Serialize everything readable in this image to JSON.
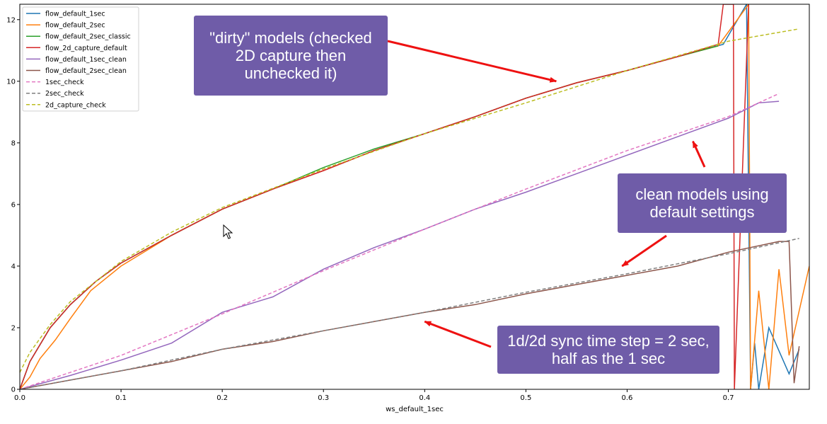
{
  "chart_data": {
    "type": "line",
    "xlabel": "ws_default_1sec",
    "ylabel": "",
    "xlim": [
      0.0,
      0.78
    ],
    "ylim": [
      0,
      12.5
    ],
    "x_ticks": [
      "0.0",
      "0.1",
      "0.2",
      "0.3",
      "0.4",
      "0.5",
      "0.6",
      "0.7"
    ],
    "y_ticks": [
      "0",
      "2",
      "4",
      "6",
      "8",
      "10",
      "12"
    ],
    "grid": false,
    "legend_position": "top-left",
    "series": [
      {
        "name": "flow_default_1sec",
        "color": "#1f77b4",
        "style": "solid",
        "points": [
          [
            0,
            0
          ],
          [
            0.01,
            0.9
          ],
          [
            0.03,
            2.0
          ],
          [
            0.05,
            2.75
          ],
          [
            0.075,
            3.5
          ],
          [
            0.1,
            4.1
          ],
          [
            0.15,
            5.0
          ],
          [
            0.2,
            5.85
          ],
          [
            0.25,
            6.5
          ],
          [
            0.3,
            7.1
          ],
          [
            0.35,
            7.75
          ],
          [
            0.4,
            8.3
          ],
          [
            0.45,
            8.85
          ],
          [
            0.5,
            9.45
          ],
          [
            0.55,
            9.95
          ],
          [
            0.6,
            10.35
          ],
          [
            0.65,
            10.8
          ],
          [
            0.695,
            11.2
          ],
          [
            0.718,
            12.5
          ],
          [
            0.722,
            0
          ],
          [
            0.726,
            1.5
          ],
          [
            0.73,
            0
          ],
          [
            0.74,
            2.0
          ],
          [
            0.76,
            0.5
          ],
          [
            0.77,
            1.3
          ]
        ]
      },
      {
        "name": "flow_default_2sec",
        "color": "#ff7f0e",
        "style": "solid",
        "points": [
          [
            0,
            0
          ],
          [
            0.01,
            0.4
          ],
          [
            0.02,
            1.0
          ],
          [
            0.035,
            1.6
          ],
          [
            0.05,
            2.3
          ],
          [
            0.07,
            3.2
          ],
          [
            0.1,
            4.0
          ],
          [
            0.15,
            5.0
          ],
          [
            0.2,
            5.85
          ],
          [
            0.25,
            6.5
          ],
          [
            0.3,
            7.1
          ],
          [
            0.35,
            7.75
          ],
          [
            0.4,
            8.3
          ],
          [
            0.45,
            8.85
          ],
          [
            0.5,
            9.45
          ],
          [
            0.55,
            9.95
          ],
          [
            0.6,
            10.35
          ],
          [
            0.65,
            10.8
          ],
          [
            0.69,
            11.15
          ],
          [
            0.72,
            12.5
          ],
          [
            0.722,
            0
          ],
          [
            0.73,
            3.2
          ],
          [
            0.74,
            0
          ],
          [
            0.75,
            3.9
          ],
          [
            0.76,
            1.1
          ],
          [
            0.78,
            4.0
          ]
        ]
      },
      {
        "name": "flow_default_2sec_classic",
        "color": "#2ca02c",
        "style": "solid",
        "points": [
          [
            0,
            0
          ],
          [
            0.01,
            0.9
          ],
          [
            0.03,
            2.0
          ],
          [
            0.05,
            2.75
          ],
          [
            0.075,
            3.5
          ],
          [
            0.1,
            4.1
          ],
          [
            0.15,
            5.0
          ],
          [
            0.2,
            5.85
          ],
          [
            0.25,
            6.5
          ],
          [
            0.3,
            7.2
          ],
          [
            0.35,
            7.8
          ],
          [
            0.4,
            8.3
          ],
          [
            0.45,
            8.85
          ],
          [
            0.5,
            9.45
          ],
          [
            0.55,
            9.95
          ],
          [
            0.6,
            10.35
          ],
          [
            0.65,
            10.8
          ],
          [
            0.69,
            11.15
          ]
        ]
      },
      {
        "name": "flow_2d_capture_default",
        "color": "#d62728",
        "style": "solid",
        "points": [
          [
            0,
            0
          ],
          [
            0.01,
            0.9
          ],
          [
            0.03,
            2.0
          ],
          [
            0.05,
            2.75
          ],
          [
            0.075,
            3.5
          ],
          [
            0.1,
            4.1
          ],
          [
            0.15,
            5.0
          ],
          [
            0.2,
            5.85
          ],
          [
            0.25,
            6.5
          ],
          [
            0.3,
            7.1
          ],
          [
            0.35,
            7.75
          ],
          [
            0.4,
            8.3
          ],
          [
            0.45,
            8.85
          ],
          [
            0.5,
            9.45
          ],
          [
            0.55,
            9.95
          ],
          [
            0.6,
            10.35
          ],
          [
            0.65,
            10.8
          ],
          [
            0.69,
            11.2
          ],
          [
            0.695,
            12.5
          ],
          [
            0.705,
            12.5
          ],
          [
            0.706,
            0
          ],
          [
            0.72,
            12.5
          ]
        ]
      },
      {
        "name": "flow_default_1sec_clean",
        "color": "#9467bd",
        "style": "solid",
        "points": [
          [
            0,
            0
          ],
          [
            0.05,
            0.45
          ],
          [
            0.1,
            0.95
          ],
          [
            0.15,
            1.5
          ],
          [
            0.2,
            2.5
          ],
          [
            0.25,
            3.0
          ],
          [
            0.3,
            3.9
          ],
          [
            0.35,
            4.6
          ],
          [
            0.4,
            5.2
          ],
          [
            0.45,
            5.85
          ],
          [
            0.5,
            6.4
          ],
          [
            0.55,
            7.0
          ],
          [
            0.6,
            7.6
          ],
          [
            0.65,
            8.2
          ],
          [
            0.7,
            8.8
          ],
          [
            0.73,
            9.3
          ],
          [
            0.75,
            9.35
          ]
        ]
      },
      {
        "name": "flow_default_2sec_clean",
        "color": "#8c564b",
        "style": "solid",
        "points": [
          [
            0,
            0
          ],
          [
            0.05,
            0.3
          ],
          [
            0.1,
            0.6
          ],
          [
            0.15,
            0.9
          ],
          [
            0.2,
            1.3
          ],
          [
            0.25,
            1.55
          ],
          [
            0.3,
            1.9
          ],
          [
            0.35,
            2.2
          ],
          [
            0.4,
            2.5
          ],
          [
            0.45,
            2.75
          ],
          [
            0.5,
            3.1
          ],
          [
            0.55,
            3.4
          ],
          [
            0.6,
            3.7
          ],
          [
            0.65,
            4.0
          ],
          [
            0.7,
            4.45
          ],
          [
            0.75,
            4.8
          ],
          [
            0.76,
            4.8
          ],
          [
            0.765,
            0.2
          ],
          [
            0.77,
            1.4
          ]
        ]
      },
      {
        "name": "1sec_check",
        "color": "#e377c2",
        "style": "dashed",
        "points": [
          [
            0,
            0
          ],
          [
            0.1,
            1.1
          ],
          [
            0.2,
            2.45
          ],
          [
            0.3,
            3.85
          ],
          [
            0.4,
            5.2
          ],
          [
            0.5,
            6.5
          ],
          [
            0.6,
            7.75
          ],
          [
            0.7,
            8.85
          ],
          [
            0.75,
            9.6
          ]
        ]
      },
      {
        "name": "2sec_check",
        "color": "#7f7f7f",
        "style": "dashed",
        "points": [
          [
            0,
            0
          ],
          [
            0.1,
            0.6
          ],
          [
            0.2,
            1.3
          ],
          [
            0.3,
            1.9
          ],
          [
            0.4,
            2.5
          ],
          [
            0.5,
            3.15
          ],
          [
            0.6,
            3.75
          ],
          [
            0.7,
            4.4
          ],
          [
            0.77,
            4.9
          ]
        ]
      },
      {
        "name": "2d_capture_check",
        "color": "#bcbd22",
        "style": "dashed",
        "points": [
          [
            0,
            0.55
          ],
          [
            0.01,
            1.2
          ],
          [
            0.03,
            2.1
          ],
          [
            0.05,
            2.85
          ],
          [
            0.1,
            4.15
          ],
          [
            0.15,
            5.1
          ],
          [
            0.2,
            5.9
          ],
          [
            0.3,
            7.15
          ],
          [
            0.4,
            8.3
          ],
          [
            0.5,
            9.3
          ],
          [
            0.6,
            10.35
          ],
          [
            0.7,
            11.3
          ],
          [
            0.77,
            11.7
          ]
        ]
      }
    ]
  },
  "annotations": [
    {
      "text": "\"dirty\" models (checked\n2D capture then\nunchecked it)",
      "arrow_to": [
        0.53,
        10.0
      ]
    },
    {
      "text": "clean models using\ndefault settings",
      "arrow_to": [
        [
          0.665,
          8.05
        ],
        [
          0.595,
          4.0
        ]
      ]
    },
    {
      "text": "1d/2d sync time step = 2 sec,\nhalf as the 1 sec",
      "arrow_to": [
        0.4,
        2.2
      ]
    }
  ],
  "callout_color": "#6f5ca8",
  "arrow_color": "#ee1111"
}
